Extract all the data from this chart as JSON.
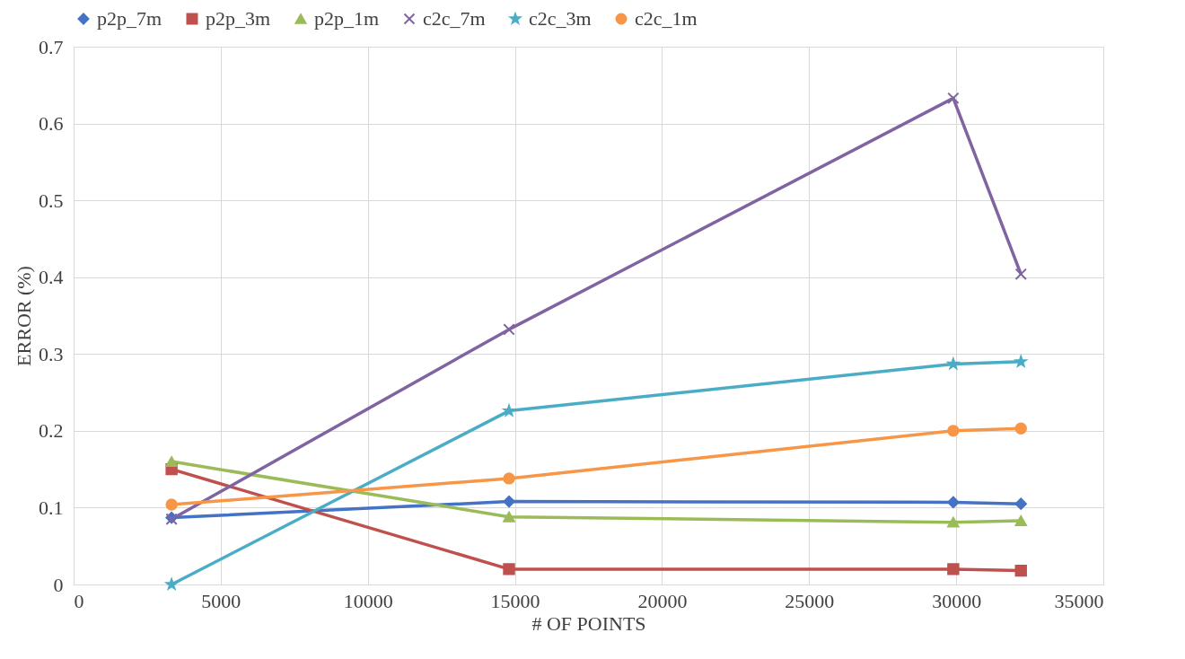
{
  "chart_data": {
    "type": "line",
    "xlabel": "# OF POINTS",
    "ylabel": "ERROR (%)",
    "x": [
      3330,
      14800,
      29900,
      32200
    ],
    "xlim": [
      0,
      35000
    ],
    "xticks": [
      0,
      5000,
      10000,
      15000,
      20000,
      25000,
      30000,
      35000
    ],
    "ylim": [
      0,
      0.7
    ],
    "yticks": [
      0,
      0.1,
      0.2,
      0.3,
      0.4,
      0.5,
      0.6,
      0.7
    ],
    "grid": true,
    "legend": "top",
    "series": [
      {
        "name": "p2p_7m",
        "color": "#4472c4",
        "marker": "diamond",
        "values": [
          0.087,
          0.108,
          0.107,
          0.105
        ]
      },
      {
        "name": "p2p_3m",
        "color": "#c0504d",
        "marker": "square",
        "values": [
          0.15,
          0.02,
          0.02,
          0.018
        ]
      },
      {
        "name": "p2p_1m",
        "color": "#9bbb59",
        "marker": "triangle",
        "values": [
          0.16,
          0.088,
          0.081,
          0.083
        ]
      },
      {
        "name": "c2c_7m",
        "color": "#8064a2",
        "marker": "cross",
        "values": [
          0.085,
          0.332,
          0.633,
          0.404
        ]
      },
      {
        "name": "c2c_3m",
        "color": "#4bacc6",
        "marker": "star",
        "values": [
          0.0,
          0.226,
          0.287,
          0.29
        ]
      },
      {
        "name": "c2c_1m",
        "color": "#f79646",
        "marker": "circle",
        "values": [
          0.104,
          0.138,
          0.2,
          0.203
        ]
      }
    ]
  }
}
